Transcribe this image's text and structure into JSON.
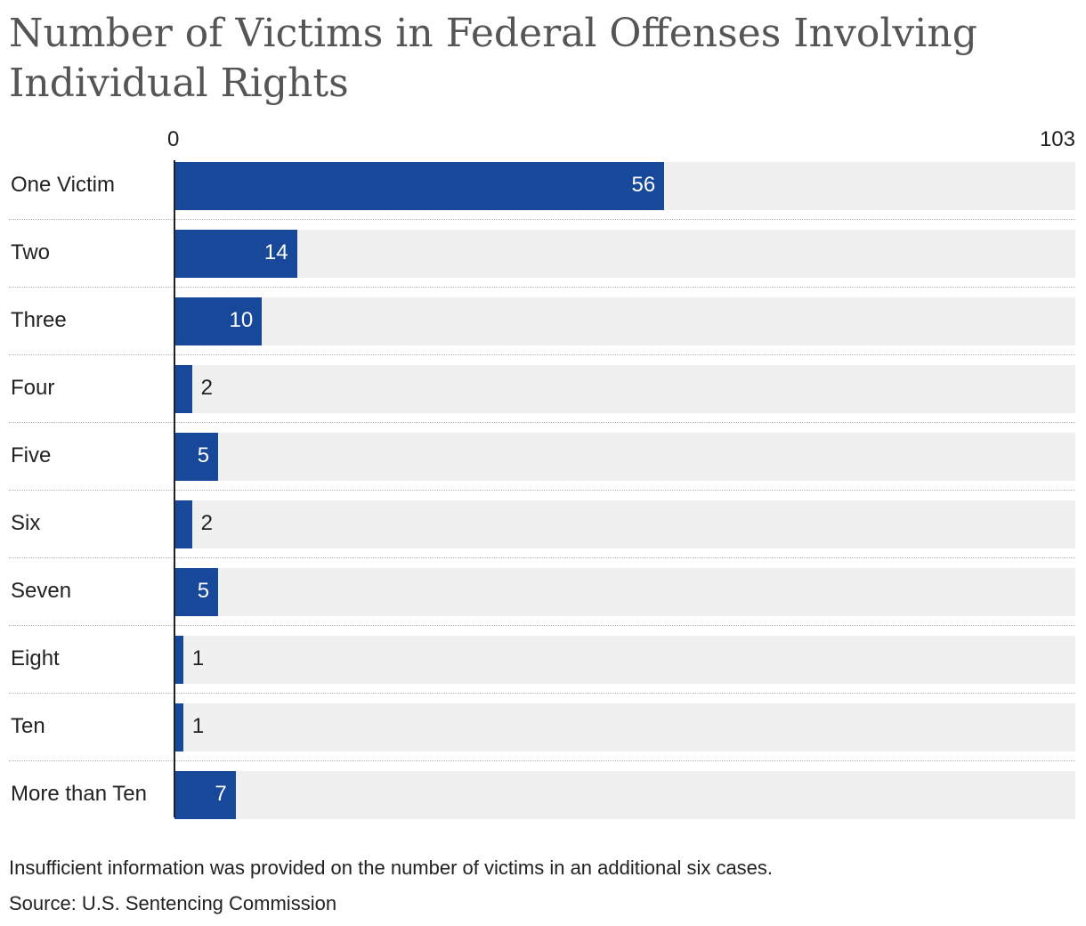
{
  "chart_data": {
    "type": "bar",
    "orientation": "horizontal",
    "title": "Number of Victims in Federal Offenses Involving Individual Rights",
    "categories": [
      "One Victim",
      "Two",
      "Three",
      "Four",
      "Five",
      "Six",
      "Seven",
      "Eight",
      "Ten",
      "More than Ten"
    ],
    "values": [
      56,
      14,
      10,
      2,
      5,
      2,
      5,
      1,
      1,
      7
    ],
    "value_labels": [
      "56",
      "14",
      "10",
      "2",
      "5",
      "2",
      "5",
      "1",
      "1",
      "7"
    ],
    "xlim": [
      0,
      103
    ],
    "axis_min_label": "0",
    "axis_max_label": "103",
    "bar_color": "#17489a",
    "track_color": "#f0f0f0",
    "grid": false,
    "legend": "none"
  },
  "footnote": "Insufficient information was provided on the number of victims in an additional six cases.",
  "source": "Source: U.S. Sentencing Commission"
}
